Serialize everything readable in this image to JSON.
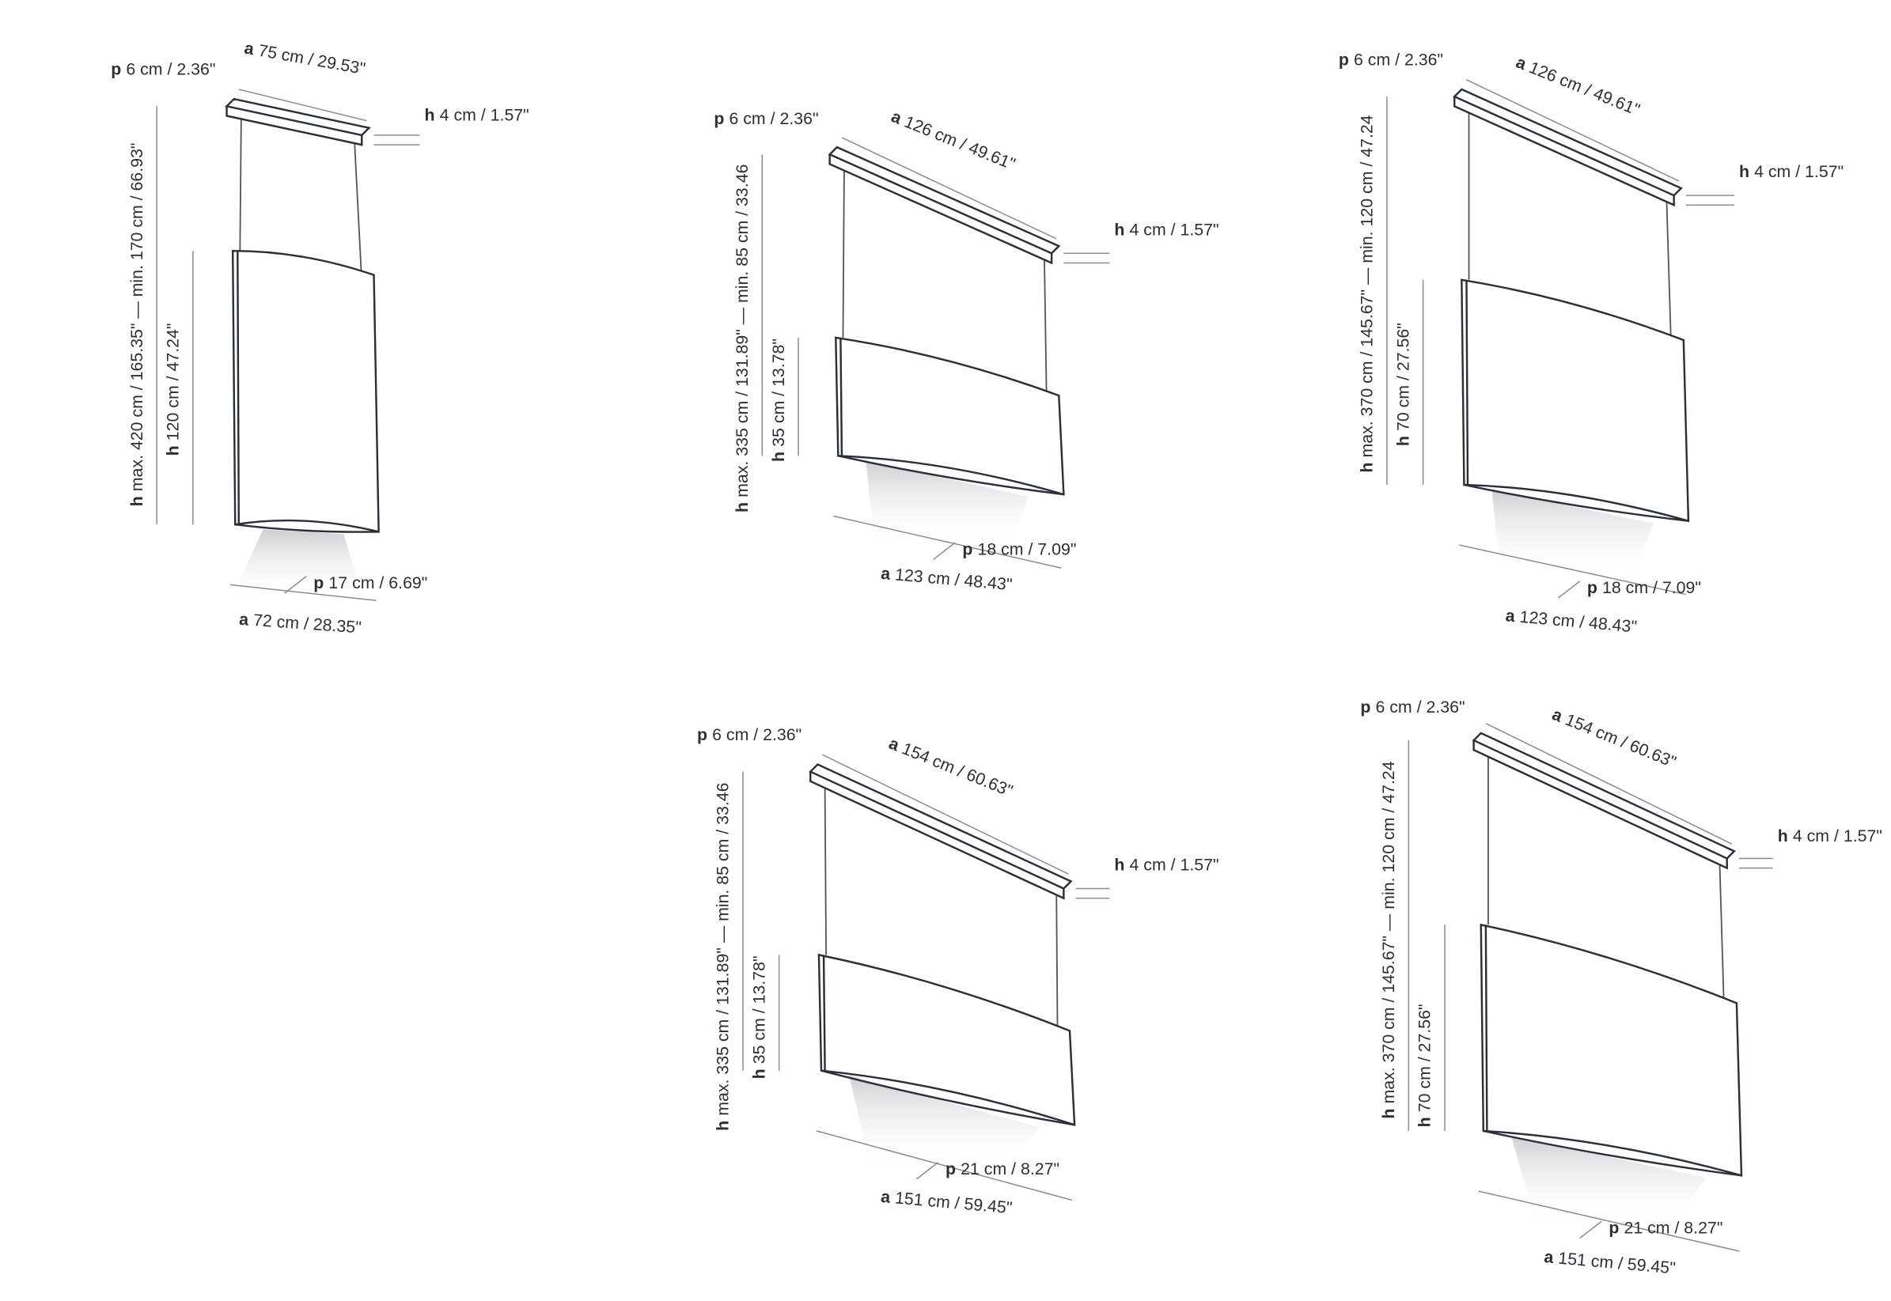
{
  "diagrams": [
    {
      "labels": [
        {
          "letter": "p",
          "text": "6 cm / 2.36\""
        },
        {
          "letter": "a",
          "text": "75 cm / 29.53\""
        },
        {
          "letter": "h",
          "text": "4 cm / 1.57\""
        },
        {
          "letter": "h",
          "text": "max. 420 cm / 165.35\" — min. 170 cm / 66.93\""
        },
        {
          "letter": "h",
          "text": "120 cm / 47.24\""
        },
        {
          "letter": "p",
          "text": "17 cm / 6.69\""
        },
        {
          "letter": "a",
          "text": "72 cm / 28.35\""
        }
      ]
    },
    {
      "labels": [
        {
          "letter": "p",
          "text": "6 cm / 2.36\""
        },
        {
          "letter": "a",
          "text": "126 cm / 49.61\""
        },
        {
          "letter": "h",
          "text": "4 cm / 1.57\""
        },
        {
          "letter": "h",
          "text": "max. 335 cm / 131.89\" — min. 85 cm / 33.46"
        },
        {
          "letter": "h",
          "text": "35 cm / 13.78\""
        },
        {
          "letter": "p",
          "text": "18 cm / 7.09\""
        },
        {
          "letter": "a",
          "text": "123 cm / 48.43\""
        }
      ]
    },
    {
      "labels": [
        {
          "letter": "p",
          "text": "6 cm / 2.36\""
        },
        {
          "letter": "a",
          "text": "126 cm / 49.61\""
        },
        {
          "letter": "h",
          "text": "4 cm / 1.57\""
        },
        {
          "letter": "h",
          "text": "max. 370 cm / 145.67\" — min. 120 cm / 47.24"
        },
        {
          "letter": "h",
          "text": "70 cm / 27.56\""
        },
        {
          "letter": "p",
          "text": "18 cm / 7.09\""
        },
        {
          "letter": "a",
          "text": "123 cm / 48.43\""
        }
      ]
    },
    {
      "labels": [
        {
          "letter": "p",
          "text": "6 cm / 2.36\""
        },
        {
          "letter": "a",
          "text": "154 cm / 60.63\""
        },
        {
          "letter": "h",
          "text": "4 cm / 1.57\""
        },
        {
          "letter": "h",
          "text": "max. 335 cm / 131.89\" — min. 85 cm / 33.46"
        },
        {
          "letter": "h",
          "text": "35 cm / 13.78\""
        },
        {
          "letter": "p",
          "text": "21 cm / 8.27\""
        },
        {
          "letter": "a",
          "text": "151 cm / 59.45\""
        }
      ]
    },
    {
      "labels": [
        {
          "letter": "p",
          "text": "6 cm / 2.36\""
        },
        {
          "letter": "a",
          "text": "154 cm / 60.63\""
        },
        {
          "letter": "h",
          "text": "4 cm / 1.57\""
        },
        {
          "letter": "h",
          "text": "max. 370 cm / 145.67\" — min. 120 cm / 47.24"
        },
        {
          "letter": "h",
          "text": "70 cm / 27.56\""
        },
        {
          "letter": "p",
          "text": "21 cm / 8.27\""
        },
        {
          "letter": "a",
          "text": "151 cm / 59.45\""
        }
      ]
    }
  ]
}
